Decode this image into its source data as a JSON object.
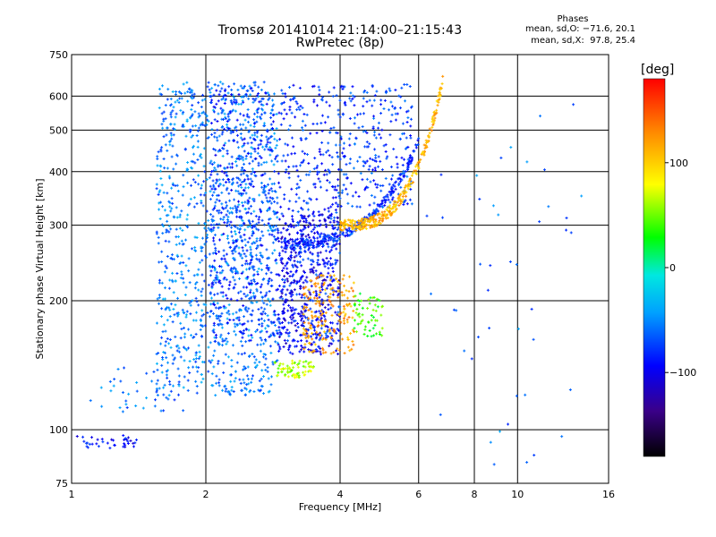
{
  "header": {
    "title_line1": "Tromsø 20141014 21:14:00–21:15:43",
    "title_line2": "RwPretec (8p)",
    "stats_heading": "Phases",
    "stats_o": "mean, sd,O: −71.6, 20.1",
    "stats_x": "mean, sd,X:  97.8, 25.4"
  },
  "colorbar": {
    "unit_label": "[deg]",
    "tick_labels": [
      "100",
      "0",
      "−100"
    ],
    "tick_values": [
      100,
      0,
      -100
    ],
    "range": [
      -180,
      180
    ]
  },
  "chart_data": {
    "type": "scatter",
    "xlabel": "Frequency [MHz]",
    "ylabel": "Stationary phase Virtual Height [km]",
    "xscale": "log",
    "yscale": "log",
    "xlim": [
      1,
      16
    ],
    "ylim": [
      75,
      750
    ],
    "grid": true,
    "x_ticks": [
      1,
      2,
      4,
      6,
      8,
      10,
      16
    ],
    "x_tick_labels": [
      "1",
      "2",
      "4",
      "6",
      "8",
      "10",
      "16"
    ],
    "y_ticks": [
      75,
      100,
      200,
      300,
      400,
      500,
      600,
      750
    ],
    "y_tick_labels": [
      "75",
      "100",
      "200",
      "300",
      "400",
      "500",
      "600",
      "750"
    ],
    "point_groups": [
      {
        "name": "low-frequency E trace",
        "x_range": [
          1.0,
          1.4
        ],
        "h_range": [
          90,
          97
        ],
        "phase": -90,
        "count": 40
      },
      {
        "name": "lower scatter",
        "x_range": [
          1.1,
          1.8
        ],
        "h_range": [
          110,
          140
        ],
        "phase": -60,
        "count": 40
      },
      {
        "name": "main low-phase cloud",
        "x_range": [
          1.55,
          2.9
        ],
        "h_range": [
          120,
          650
        ],
        "phase": -55,
        "count": 1200
      },
      {
        "name": "cloud band 2",
        "x_range": [
          2.05,
          4.0
        ],
        "h_range": [
          160,
          640
        ],
        "phase": -80,
        "count": 900
      },
      {
        "name": "blue cluster 3-4 MHz",
        "x_range": [
          2.9,
          4.0
        ],
        "h_range": [
          150,
          320
        ],
        "phase": -100,
        "count": 400
      },
      {
        "name": "upper sparse 4-5.8 MHz",
        "x_range": [
          4.0,
          5.8
        ],
        "h_range": [
          330,
          640
        ],
        "phase": -75,
        "count": 240
      },
      {
        "name": "orange cluster",
        "x_range": [
          3.3,
          4.3
        ],
        "h_range": [
          150,
          230
        ],
        "phase": 120,
        "count": 180
      },
      {
        "name": "yellow-green patch",
        "x_range": [
          4.3,
          5.0
        ],
        "h_range": [
          165,
          210
        ],
        "phase": 40,
        "count": 60
      },
      {
        "name": "green-yellow ~140 km",
        "x_range": [
          2.85,
          3.5
        ],
        "h_range": [
          132,
          145
        ],
        "phase": 60,
        "count": 70
      },
      {
        "name": "O-mode F trace",
        "x_range": [
          3.0,
          6.0
        ],
        "h_range": [
          270,
          470
        ],
        "phase": -80,
        "count": 260
      },
      {
        "name": "X-mode F trace",
        "x_range": [
          4.0,
          6.8
        ],
        "h_range": [
          300,
          650
        ],
        "phase": 110,
        "count": 300
      },
      {
        "name": "sparse high-frequency",
        "x_range": [
          6.0,
          14.5
        ],
        "h_range": [
          80,
          620
        ],
        "phase": -60,
        "count": 45
      }
    ]
  }
}
